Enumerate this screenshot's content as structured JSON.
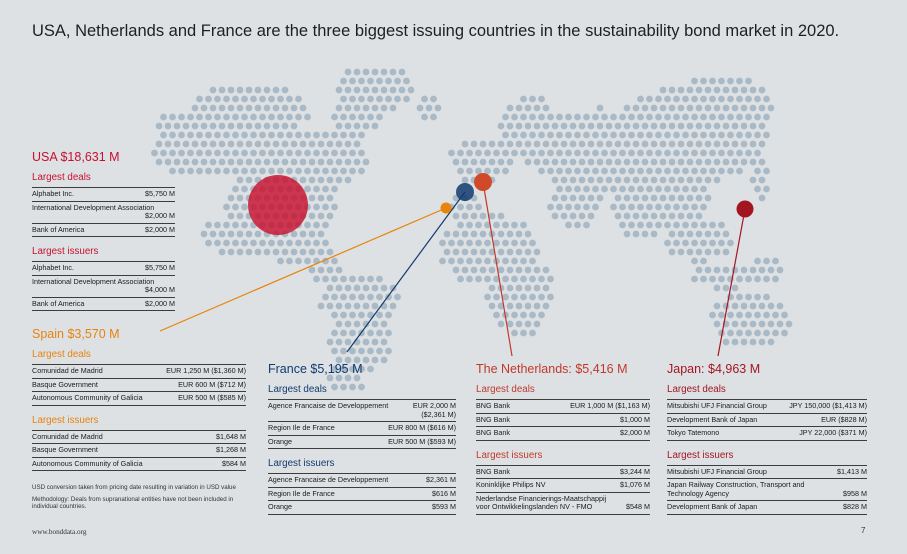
{
  "title": "USA, Netherlands and France are the three biggest issuing countries in the sustainability bond market in 2020.",
  "colors": {
    "usa": "#c8102e",
    "spain": "#e8830c",
    "france": "#123a6e",
    "netherlands": "#c0392b",
    "japan": "#a31621",
    "map_dots": "#a9b9c6"
  },
  "usa": {
    "title": "USA  $18,631 M",
    "deals_label": "Largest deals",
    "deals": [
      {
        "name": "Alphabet Inc.",
        "value": "$5,750 M"
      },
      {
        "name": "International Development Association",
        "value": "$2,000 M"
      },
      {
        "name": "Bank of America",
        "value": "$2,000 M"
      }
    ],
    "issuers_label": "Largest issuers",
    "issuers": [
      {
        "name": "Alphabet Inc.",
        "value": "$5,750 M"
      },
      {
        "name": "International Development Association",
        "value": "$4,000 M"
      },
      {
        "name": "Bank of America",
        "value": "$2,000 M"
      }
    ]
  },
  "spain": {
    "title": "Spain $3,570 M",
    "deals_label": "Largest deals",
    "deals": [
      {
        "name": "Comunidad de Madrid",
        "value": "EUR 1,250 M ($1,360 M)"
      },
      {
        "name": "Basque Government",
        "value": "EUR 600 M ($712 M)"
      },
      {
        "name": "Autonomous Community of Galicia",
        "value": "EUR 500 M ($585 M)"
      }
    ],
    "issuers_label": "Largest issuers",
    "issuers": [
      {
        "name": "Comunidad de Madrid",
        "value": "$1,648 M"
      },
      {
        "name": "Basque Government",
        "value": "$1,268 M"
      },
      {
        "name": "Autonomous Community of Galicia",
        "value": "$584 M"
      }
    ]
  },
  "france": {
    "title": "France  $5,195 M",
    "deals_label": "Largest deals",
    "deals": [
      {
        "name": "Agence Francaise de Developpement",
        "value": "EUR 2,000 M",
        "value2": "($2,361 M)"
      },
      {
        "name": "Region Ile de France",
        "value": "EUR 800 M ($616 M)"
      },
      {
        "name": "Orange",
        "value": "EUR 500 M ($593 M)"
      }
    ],
    "issuers_label": "Largest issuers",
    "issuers": [
      {
        "name": "Agence Francaise de Developpement",
        "value": "$2,361 M"
      },
      {
        "name": "Region Ile de France",
        "value": "$616 M"
      },
      {
        "name": "Orange",
        "value": "$593 M"
      }
    ]
  },
  "netherlands": {
    "title": "The Netherlands: $5,416 M",
    "deals_label": "Largest deals",
    "deals": [
      {
        "name": "BNG Bank",
        "value": "EUR 1,000 M ($1,163 M)"
      },
      {
        "name": "BNG Bank",
        "value": "$1,000 M"
      },
      {
        "name": "BNG Bank",
        "value": "$2,000 M"
      }
    ],
    "issuers_label": "Largest issuers",
    "issuers": [
      {
        "name": "BNG Bank",
        "value": "$3,244 M"
      },
      {
        "name": "Koninklijke Philips NV",
        "value": "$1,076 M"
      },
      {
        "name": "Nederlandse Financierings-Maatschappij voor Ontwikkelingslanden NV - FMO",
        "value": "$548 M"
      }
    ]
  },
  "japan": {
    "title": "Japan: $4,963 M",
    "deals_label": "Largest deals",
    "deals": [
      {
        "name": "Mitsubishi UFJ Financial Group",
        "value": "JPY 150,000 ($1,413 M)"
      },
      {
        "name": "Development Bank of Japan",
        "value": "EUR ($828 M)"
      },
      {
        "name": "Tokyo Tatemono",
        "value": "JPY 22,000 ($371 M)"
      }
    ],
    "issuers_label": "Largest issuers",
    "issuers": [
      {
        "name": "Mitsubishi UFJ Financial Group",
        "value": "$1,413 M"
      },
      {
        "name": "Japan Railway Construction, Transport and Technology Agency",
        "value": "$958 M"
      },
      {
        "name": "Development Bank of Japan",
        "value": "$828 M"
      }
    ]
  },
  "notes": {
    "conversion": "USD conversion taken from pricing date resulting in variation in USD value",
    "methodology": "Methodology: Deals from supranational entities have not been included in individual countries."
  },
  "footer": {
    "website": "www.bonddata.org",
    "page_number": "7"
  }
}
